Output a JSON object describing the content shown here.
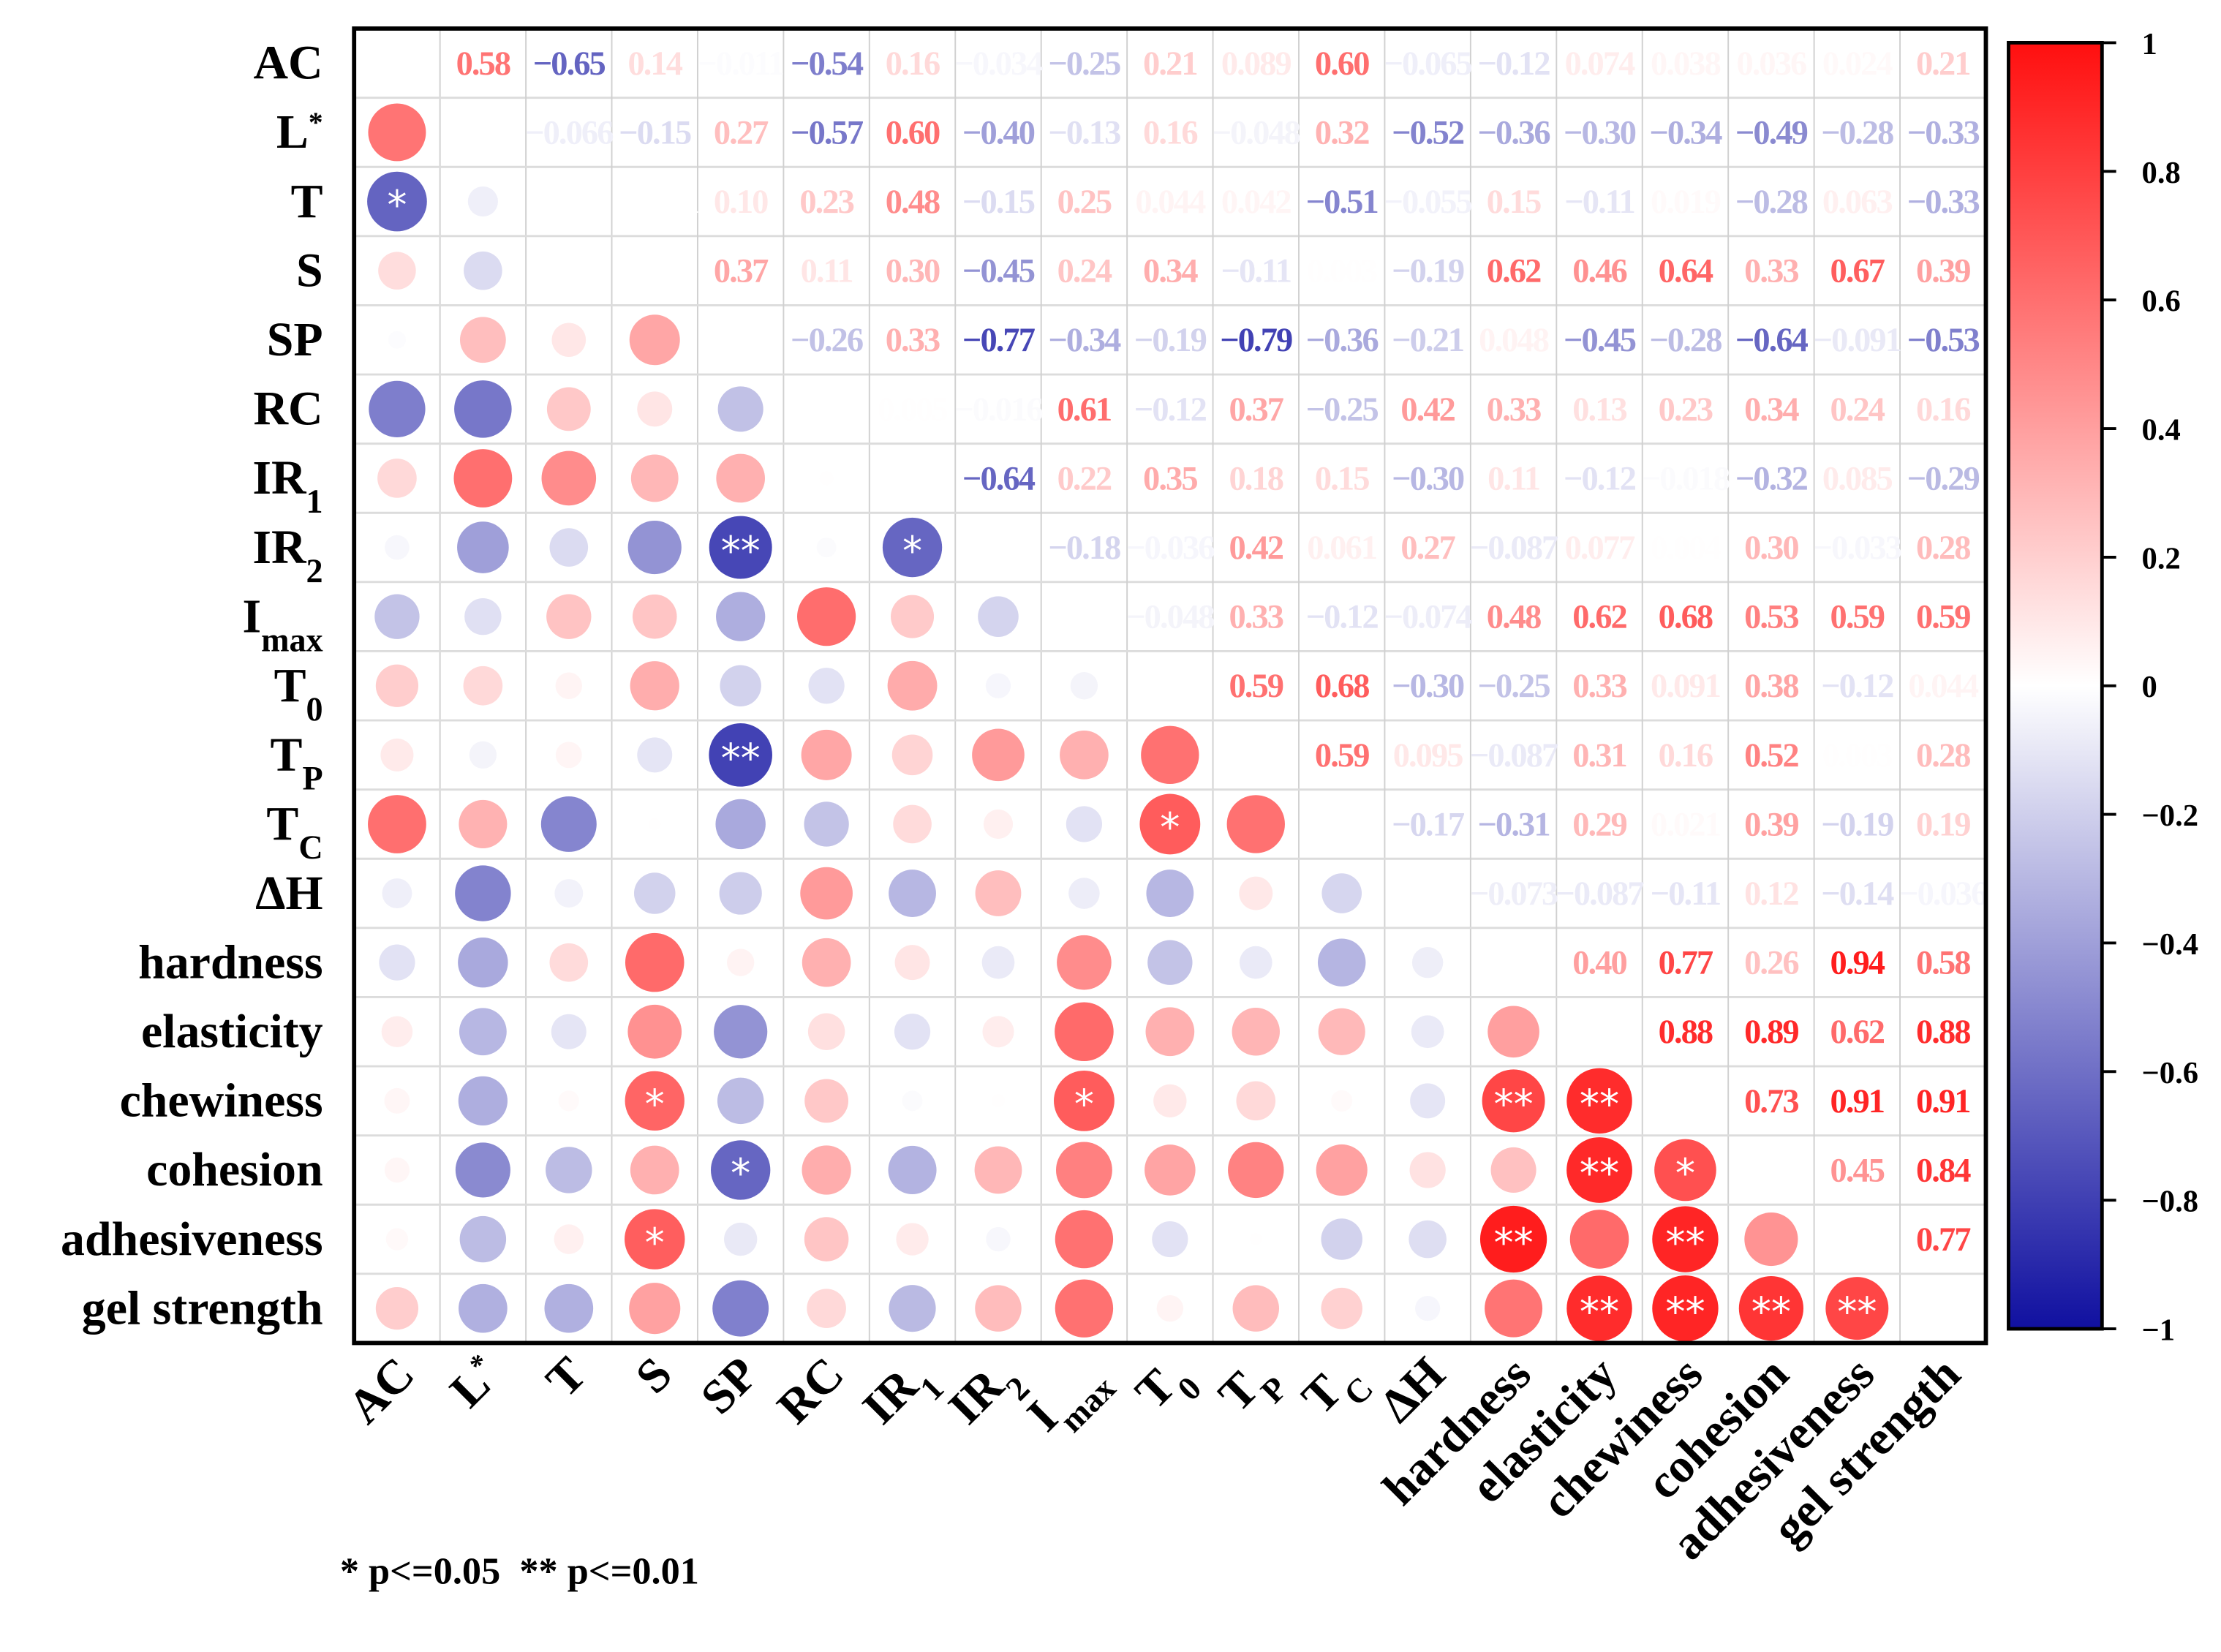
{
  "chart_data": {
    "type": "heatmap",
    "subtype": "correlation-matrix (upper: coefficients, lower: circles)",
    "variables": [
      {
        "main": "AC"
      },
      {
        "main": "L",
        "sup": "*"
      },
      {
        "main": "T"
      },
      {
        "main": "S"
      },
      {
        "main": "SP"
      },
      {
        "main": "RC"
      },
      {
        "main": "IR",
        "sub": "1"
      },
      {
        "main": "IR",
        "sub": "2"
      },
      {
        "main": "I",
        "sub": "max"
      },
      {
        "main": "T",
        "sub": "0"
      },
      {
        "main": "T",
        "sub": "P"
      },
      {
        "main": "T",
        "sub": "C"
      },
      {
        "main": "ΔH"
      },
      {
        "main": "hardness"
      },
      {
        "main": "elasticity"
      },
      {
        "main": "chewiness"
      },
      {
        "main": "cohesion"
      },
      {
        "main": "adhesiveness"
      },
      {
        "main": "gel strength"
      }
    ],
    "upper_triangle": [
      [
        "0.58",
        "-0.65",
        "0.14",
        "-0.011",
        "-0.54",
        "0.16",
        "-0.034",
        "-0.25",
        "0.21",
        "0.089",
        "0.60",
        "-0.065",
        "-0.12",
        "0.074",
        "0.038",
        "0.036",
        "0.024",
        "0.21"
      ],
      [
        "-0.066",
        "-0.15",
        "0.27",
        "-0.57",
        "0.60",
        "-0.40",
        "-0.13",
        "0.16",
        "-0.048",
        "0.32",
        "-0.52",
        "-0.36",
        "-0.30",
        "-0.34",
        "-0.49",
        "-0.28",
        "-0.33"
      ],
      [
        "-0.001",
        "0.10",
        "0.23",
        "0.48",
        "-0.15",
        "0.25",
        "0.044",
        "0.042",
        "-0.51",
        "-0.055",
        "0.15",
        "-0.11",
        "0.019",
        "-0.28",
        "0.063",
        "-0.33"
      ],
      [
        "0.37",
        "0.11",
        "0.30",
        "-0.45",
        "0.24",
        "0.34",
        "-0.11",
        "0.003",
        "-0.19",
        "0.62",
        "0.46",
        "0.64",
        "0.33",
        "0.67",
        "0.39"
      ],
      [
        "-0.26",
        "0.33",
        "-0.77",
        "-0.34",
        "-0.19",
        "-0.79",
        "-0.36",
        "-0.21",
        "0.048",
        "-0.45",
        "-0.28",
        "-0.64",
        "-0.091",
        "-0.53"
      ],
      [
        "0.005",
        "-0.016",
        "0.61",
        "-0.12",
        "0.37",
        "-0.25",
        "0.42",
        "0.33",
        "0.13",
        "0.23",
        "0.34",
        "0.24",
        "0.16"
      ],
      [
        "-0.64",
        "0.22",
        "0.35",
        "0.18",
        "0.15",
        "-0.30",
        "0.11",
        "-0.12",
        "-0.018",
        "-0.32",
        "0.085",
        "-0.29"
      ],
      [
        "-0.18",
        "-0.036",
        "0.42",
        "0.061",
        "0.27",
        "-0.087",
        "0.077",
        "0.004",
        "0.30",
        "-0.033",
        "0.28"
      ],
      [
        "-0.048",
        "0.33",
        "-0.12",
        "-0.074",
        "0.48",
        "0.62",
        "0.68",
        "0.53",
        "0.59",
        "0.59"
      ],
      [
        "0.59",
        "0.68",
        "-0.30",
        "-0.25",
        "0.33",
        "0.091",
        "0.38",
        "-0.12",
        "0.044"
      ],
      [
        "0.59",
        "0.095",
        "-0.087",
        "0.31",
        "0.16",
        "0.52",
        "0.003",
        "0.28"
      ],
      [
        "-0.17",
        "-0.31",
        "0.29",
        "0.021",
        "0.39",
        "-0.19",
        "0.19"
      ],
      [
        "-0.073",
        "-0.087",
        "-0.11",
        "0.12",
        "-0.14",
        "-0.036"
      ],
      [
        "0.40",
        "0.77",
        "0.26",
        "0.94",
        "0.58"
      ],
      [
        "0.88",
        "0.89",
        "0.62",
        "0.88"
      ],
      [
        "0.73",
        "0.91",
        "0.91"
      ],
      [
        "0.45",
        "0.84"
      ],
      [
        "0.77"
      ]
    ],
    "significance": [
      {
        "row": 2,
        "col": 0,
        "mark": "*"
      },
      {
        "row": 7,
        "col": 4,
        "mark": "**"
      },
      {
        "row": 7,
        "col": 6,
        "mark": "*"
      },
      {
        "row": 10,
        "col": 4,
        "mark": "**"
      },
      {
        "row": 11,
        "col": 9,
        "mark": "*"
      },
      {
        "row": 15,
        "col": 3,
        "mark": "*"
      },
      {
        "row": 15,
        "col": 8,
        "mark": "*"
      },
      {
        "row": 15,
        "col": 13,
        "mark": "**"
      },
      {
        "row": 15,
        "col": 14,
        "mark": "**"
      },
      {
        "row": 16,
        "col": 4,
        "mark": "*"
      },
      {
        "row": 16,
        "col": 14,
        "mark": "**"
      },
      {
        "row": 16,
        "col": 15,
        "mark": "*"
      },
      {
        "row": 17,
        "col": 3,
        "mark": "*"
      },
      {
        "row": 17,
        "col": 13,
        "mark": "**"
      },
      {
        "row": 17,
        "col": 15,
        "mark": "**"
      },
      {
        "row": 18,
        "col": 14,
        "mark": "**"
      },
      {
        "row": 18,
        "col": 15,
        "mark": "**"
      },
      {
        "row": 18,
        "col": 16,
        "mark": "**"
      },
      {
        "row": 18,
        "col": 17,
        "mark": "**"
      }
    ],
    "colorbar": {
      "range": [
        -1,
        1
      ],
      "ticks": [
        "1",
        "0.8",
        "0.6",
        "0.4",
        "0.2",
        "0",
        "−0.2",
        "−0.4",
        "−0.6",
        "−0.8",
        "−1"
      ],
      "colors": {
        "neg": "#1010a0",
        "zero": "#ffffff",
        "pos": "#ff0f0f"
      }
    },
    "footnote": "* p<=0.05  ** p<=0.01"
  }
}
